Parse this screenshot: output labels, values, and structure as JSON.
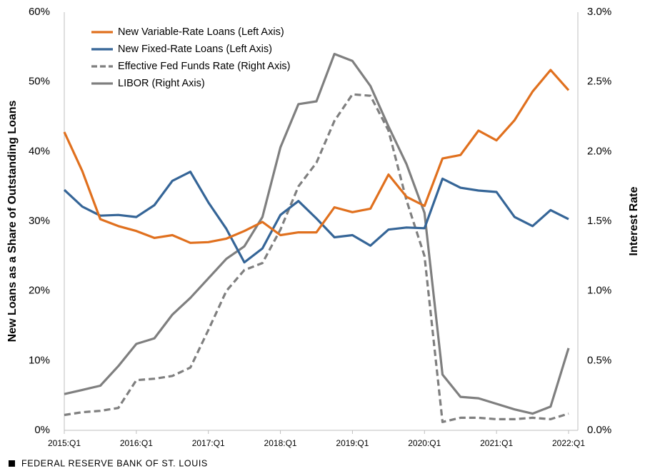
{
  "chart_data": {
    "type": "line",
    "y_label": "New Loans as a Share of Outstanding Loans",
    "y2_label": "Interest Rate",
    "source": "FEDERAL RESERVE BANK OF ST. LOUIS",
    "legend": "upper left",
    "categories": [
      "2015:Q1",
      null,
      null,
      null,
      "2016:Q1",
      null,
      null,
      null,
      "2017:Q1",
      null,
      null,
      null,
      "2018:Q1",
      null,
      null,
      null,
      "2019:Q1",
      null,
      null,
      null,
      "2020:Q1",
      null,
      null,
      null,
      "2021:Q1",
      null,
      null,
      null,
      "2022:Q1"
    ],
    "ylim": [
      0,
      60
    ],
    "yticks": [
      {
        "value": 0,
        "label": "0%"
      },
      {
        "value": 10,
        "label": "10%"
      },
      {
        "value": 20,
        "label": "20%"
      },
      {
        "value": 30,
        "label": "30%"
      },
      {
        "value": 40,
        "label": "40%"
      },
      {
        "value": 50,
        "label": "50%"
      },
      {
        "value": 60,
        "label": "60%"
      }
    ],
    "y2lim": [
      0,
      3
    ],
    "y2ticks": [
      {
        "value": 0,
        "label": "0.0%"
      },
      {
        "value": 0.5,
        "label": "0.5%"
      },
      {
        "value": 1,
        "label": "1.0%"
      },
      {
        "value": 1.5,
        "label": "1.5%"
      },
      {
        "value": 2,
        "label": "2.0%"
      },
      {
        "value": 2.5,
        "label": "2.5%"
      },
      {
        "value": 3,
        "label": "3.0%"
      }
    ],
    "series": [
      {
        "name": "New Variable-Rate Loans (Left Axis)",
        "color": "#e0701e",
        "dashed": false,
        "values": [
          42.8,
          37.2,
          30.3,
          29.3,
          28.6,
          27.6,
          28.0,
          26.9,
          27.0,
          27.5,
          28.6,
          29.9,
          28.0,
          28.4,
          28.4,
          32.0,
          31.3,
          31.8,
          36.7,
          33.5,
          32.2,
          39.0,
          39.5,
          43.0,
          41.6,
          44.5,
          48.6,
          51.7,
          48.8
        ]
      },
      {
        "name": "New Fixed-Rate Loans (Left Axis)",
        "color": "#356597",
        "dashed": false,
        "values": [
          34.5,
          32.1,
          30.8,
          30.9,
          30.6,
          32.3,
          35.8,
          37.1,
          32.7,
          28.9,
          24.1,
          26.1,
          30.9,
          32.9,
          30.4,
          27.7,
          28.0,
          26.5,
          28.8,
          29.1,
          29.0,
          36.1,
          34.8,
          34.4,
          34.2,
          30.6,
          29.3,
          31.6,
          30.3
        ]
      },
      {
        "name": "Effective Fed Funds Rate (Right Axis)",
        "color": "#7f7f7f",
        "dashed": true,
        "axis": "y2",
        "values": [
          0.11,
          0.13,
          0.14,
          0.16,
          0.36,
          0.37,
          0.39,
          0.45,
          0.72,
          1.0,
          1.15,
          1.2,
          1.44,
          1.75,
          1.92,
          2.22,
          2.41,
          2.4,
          2.15,
          1.65,
          1.25,
          0.06,
          0.09,
          0.09,
          0.08,
          0.08,
          0.09,
          0.08,
          0.12
        ]
      },
      {
        "name": "LIBOR (Right Axis)",
        "color": "#7f7f7f",
        "dashed": false,
        "axis": "y2",
        "values": [
          0.26,
          0.29,
          0.32,
          0.46,
          0.62,
          0.66,
          0.83,
          0.95,
          1.09,
          1.23,
          1.32,
          1.53,
          2.03,
          2.34,
          2.36,
          2.7,
          2.65,
          2.47,
          2.18,
          1.91,
          1.56,
          0.4,
          0.24,
          0.23,
          0.19,
          0.15,
          0.12,
          0.17,
          0.59
        ]
      }
    ]
  }
}
